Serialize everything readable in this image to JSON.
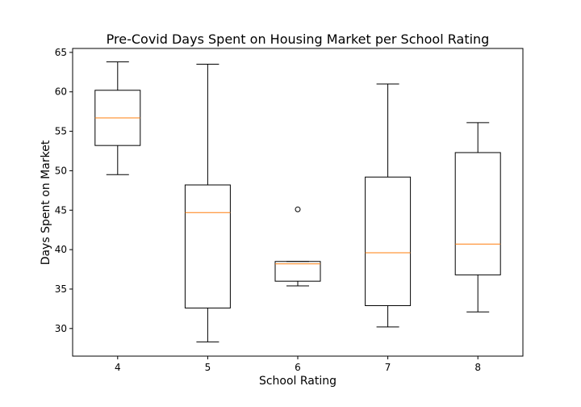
{
  "chart_data": {
    "type": "box",
    "title": "Pre-Covid Days Spent on Housing Market per School Rating",
    "xlabel": "School Rating",
    "ylabel": "Days Spent on Market",
    "categories": [
      "4",
      "5",
      "6",
      "7",
      "8"
    ],
    "ylim": [
      26.5,
      65.5
    ],
    "yticks": [
      30,
      35,
      40,
      45,
      50,
      55,
      60,
      65
    ],
    "grid": false,
    "boxes": [
      {
        "category": "4",
        "whisker_low": 49.5,
        "q1": 53.2,
        "median": 56.7,
        "q3": 60.2,
        "whisker_high": 63.8,
        "outliers": []
      },
      {
        "category": "5",
        "whisker_low": 28.3,
        "q1": 32.6,
        "median": 44.7,
        "q3": 48.2,
        "whisker_high": 63.5,
        "outliers": []
      },
      {
        "category": "6",
        "whisker_low": 35.4,
        "q1": 36.0,
        "median": 38.2,
        "q3": 38.5,
        "whisker_high": 38.5,
        "outliers": [
          45.1
        ]
      },
      {
        "category": "7",
        "whisker_low": 30.2,
        "q1": 32.9,
        "median": 39.6,
        "q3": 49.2,
        "whisker_high": 61.0,
        "outliers": []
      },
      {
        "category": "8",
        "whisker_low": 32.1,
        "q1": 36.8,
        "median": 40.7,
        "q3": 52.3,
        "whisker_high": 56.1,
        "outliers": []
      }
    ],
    "colors": {
      "box": "#000000",
      "median": "#ff7f0e"
    }
  }
}
